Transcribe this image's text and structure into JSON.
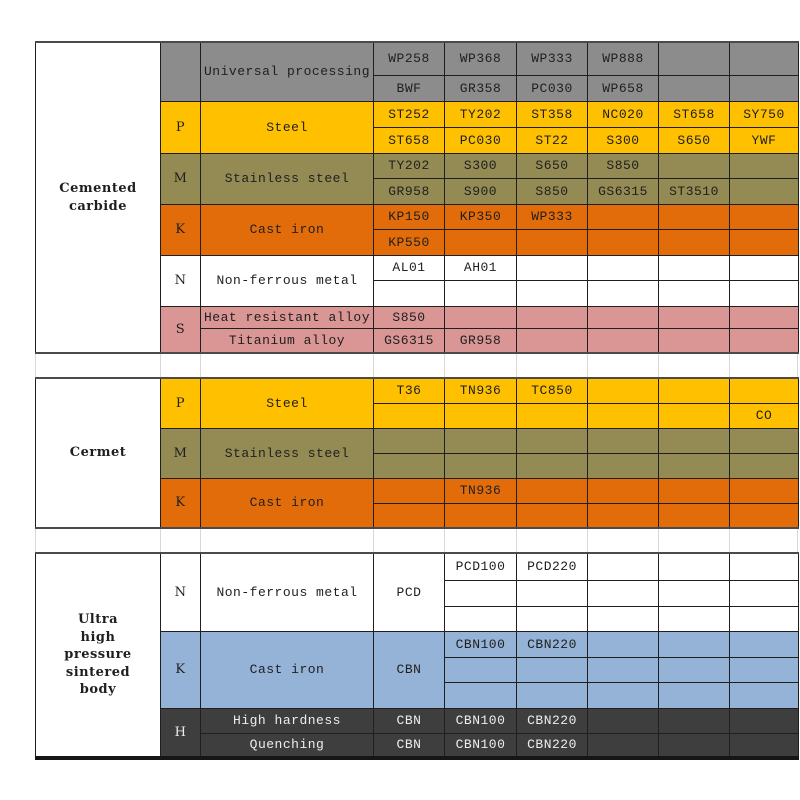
{
  "title": "Tool material grade classification table",
  "colors": {
    "gray": "#8C8C8C",
    "yellow": "#FFC000",
    "olive": "#948A54",
    "orange": "#E26C09",
    "white": "#FFFFFF",
    "pink": "#D99694",
    "blue": "#95B3D7",
    "dark": "#3E3E3E",
    "cell_border": "#1F1F1F",
    "section_border": "#4A4A4A",
    "faint_grid": "#D8D8D8",
    "text_dark": "#1F1F1F",
    "text_light": "#EDEDED",
    "page_bg": "#FFFFFF"
  },
  "sections": [
    {
      "id": "cemented-carbide",
      "material": "Cemented carbide",
      "material_lines": [
        "Cemented",
        "carbide"
      ],
      "groups": [
        {
          "letter": "",
          "bg": "gray",
          "applications": [
            "Universal processing"
          ],
          "rows": [
            [
              "WP258",
              "WP368",
              "WP333",
              "WP888",
              "",
              ""
            ],
            [
              "BWF",
              "GR358",
              "PC030",
              "WP658",
              "",
              ""
            ]
          ]
        },
        {
          "letter": "P",
          "bg": "yellow",
          "applications": [
            "Steel"
          ],
          "rows": [
            [
              "ST252",
              "TY202",
              "ST358",
              "NC020",
              "ST658",
              "SY750"
            ],
            [
              "ST658",
              "PC030",
              "ST22",
              "S300",
              "S650",
              "YWF"
            ]
          ]
        },
        {
          "letter": "M",
          "bg": "olive",
          "applications": [
            "Stainless steel"
          ],
          "rows": [
            [
              "TY202",
              "S300",
              "S650",
              "S850",
              "",
              ""
            ],
            [
              "GR958",
              "S900",
              "S850",
              "GS6315",
              "ST3510",
              ""
            ]
          ]
        },
        {
          "letter": "K",
          "bg": "orange",
          "applications": [
            "Cast iron"
          ],
          "rows": [
            [
              "KP150",
              "KP350",
              "WP333",
              "",
              "",
              ""
            ],
            [
              "KP550",
              "",
              "",
              "",
              "",
              ""
            ]
          ]
        },
        {
          "letter": "N",
          "bg": "white",
          "applications": [
            "Non-ferrous metal"
          ],
          "rows": [
            [
              "AL01",
              "AH01",
              "",
              "",
              "",
              ""
            ],
            [
              "",
              "",
              "",
              "",
              "",
              ""
            ]
          ]
        },
        {
          "letter": "S",
          "bg": "pink",
          "applications": [
            "Heat resistant alloy",
            "Titanium alloy"
          ],
          "rows": [
            [
              "S850",
              "",
              "",
              "",
              "",
              ""
            ],
            [
              "GS6315",
              "GR958",
              "",
              "",
              "",
              ""
            ]
          ]
        }
      ]
    },
    {
      "id": "cermet",
      "material": "Cermet",
      "material_lines": [
        "Cermet"
      ],
      "groups": [
        {
          "letter": "P",
          "bg": "yellow",
          "applications": [
            "Steel"
          ],
          "rows": [
            [
              "T36",
              "TN936",
              "TC850",
              "",
              "",
              ""
            ],
            [
              "",
              "",
              "",
              "",
              "",
              {
                "text": "CO",
                "align": "right"
              }
            ]
          ]
        },
        {
          "letter": "M",
          "bg": "olive",
          "applications": [
            "Stainless steel"
          ],
          "rows": [
            [
              "",
              "",
              "",
              "",
              "",
              ""
            ],
            [
              "",
              "",
              "",
              "",
              "",
              ""
            ]
          ]
        },
        {
          "letter": "K",
          "bg": "orange",
          "applications": [
            "Cast iron"
          ],
          "rows": [
            [
              "",
              "TN936",
              "",
              "",
              "",
              ""
            ],
            [
              "",
              "",
              "",
              "",
              "",
              ""
            ]
          ]
        }
      ]
    },
    {
      "id": "ultra-high-pressure-sintered-body",
      "material": "Ultra high pressure sintered body",
      "material_lines": [
        "Ultra",
        "high",
        "pressure",
        "sintered",
        "body"
      ],
      "groups": [
        {
          "letter": "N",
          "bg": "white",
          "applications": [
            "Non-ferrous metal"
          ],
          "merged_first": "PCD",
          "rows": [
            [
              "PCD100",
              "PCD220",
              "",
              "",
              ""
            ],
            [
              "",
              "",
              "",
              "",
              ""
            ],
            [
              "",
              "",
              "",
              "",
              ""
            ]
          ]
        },
        {
          "letter": "K",
          "bg": "blue",
          "applications": [
            "Cast iron"
          ],
          "merged_first": "CBN",
          "rows": [
            [
              "CBN100",
              "CBN220",
              "",
              "",
              ""
            ],
            [
              "",
              "",
              "",
              "",
              ""
            ],
            [
              "",
              "",
              "",
              "",
              ""
            ]
          ]
        },
        {
          "letter": "H",
          "bg": "dark",
          "applications": [
            "High hardness",
            "Quenching"
          ],
          "rows": [
            [
              "CBN",
              "CBN100",
              "CBN220",
              "",
              "",
              ""
            ],
            [
              "CBN",
              "CBN100",
              "CBN220",
              "",
              "",
              ""
            ]
          ]
        }
      ]
    }
  ]
}
